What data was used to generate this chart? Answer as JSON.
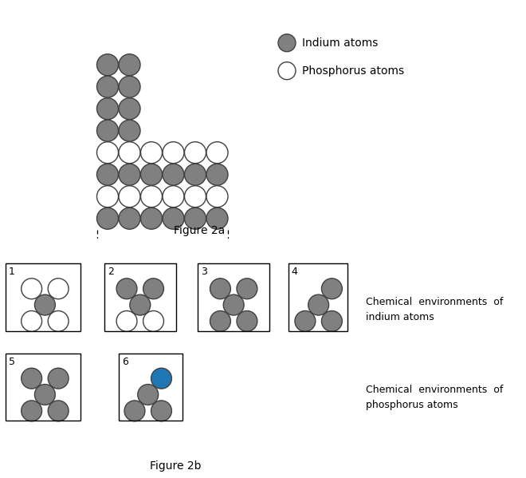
{
  "fig2a_title": "Figure 2a",
  "fig2b_title": "Figure 2b",
  "indium_color": "#808080",
  "phosphorus_color": "#ffffff",
  "atom_edge_color": "#404040",
  "background": "#ffffff",
  "legend_indium_label": "Indium atoms",
  "legend_phosphorus_label": "Phosphorus atoms",
  "chem_env_indium_label": "Chemical  environments  of\nindium atoms",
  "chem_env_phosphorus_label": "Chemical  environments  of\nphosphorus atoms",
  "font_size_legend": 10,
  "font_size_title": 10,
  "font_size_label": 9,
  "font_size_number": 9
}
